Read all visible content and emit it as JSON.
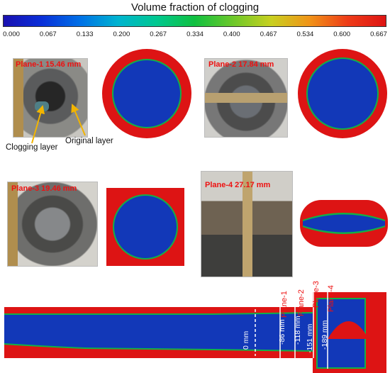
{
  "colorbar": {
    "title": "Volume fraction of clogging",
    "ticks": [
      "0.000",
      "0.067",
      "0.133",
      "0.200",
      "0.267",
      "0.334",
      "0.400",
      "0.467",
      "0.534",
      "0.600",
      "0.667"
    ],
    "colors": [
      "#1a10b0",
      "#0a2fd8",
      "#0070e6",
      "#00b4d0",
      "#00c890",
      "#10c040",
      "#6cc82a",
      "#c8d020",
      "#f09418",
      "#ee3c18",
      "#dd1414"
    ]
  },
  "planes": [
    {
      "label": "Plane-1 15.46 mm"
    },
    {
      "label": "Plane-2 17.84 mm"
    },
    {
      "label": "Plane-3 19.46 mm"
    },
    {
      "label": "Plane-4 27.17 mm"
    }
  ],
  "annotations": {
    "clogging_layer": "Clogging layer",
    "original_layer": "Original layer"
  },
  "longitudinal": {
    "positions": [
      "0 mm",
      "-86 mm",
      "-118 mm",
      "-151 mm",
      "-189 mm"
    ],
    "plane_tags": [
      "Plane-1",
      "Plane-2",
      "Plane-3",
      "Plane-4"
    ]
  },
  "colors": {
    "clog": "#dd1414",
    "core": "#1238b8",
    "edge": "#12b048",
    "label_red": "#ee1111"
  }
}
